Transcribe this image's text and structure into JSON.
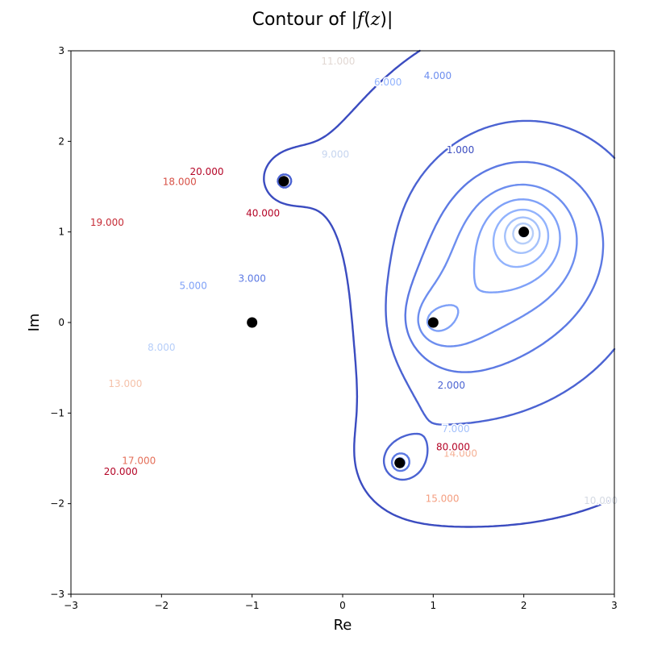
{
  "chart_data": {
    "type": "contour",
    "title": "Contour of |f(z)|",
    "xlabel": "Re",
    "ylabel": "Im",
    "xlim": [
      -3,
      3
    ],
    "ylim": [
      -3,
      3
    ],
    "xticks": [
      "−3",
      "−2",
      "−1",
      "0",
      "1",
      "2",
      "3"
    ],
    "yticks": [
      "−3",
      "−2",
      "−1",
      "0",
      "1",
      "2",
      "3"
    ],
    "grid": false,
    "colormap": "coolwarm",
    "levels": [
      1,
      2,
      3,
      4,
      5,
      6,
      7,
      8,
      9,
      10,
      11,
      12,
      13,
      14,
      15,
      16,
      17,
      18,
      19,
      20
    ],
    "points": [
      {
        "x": -1.0,
        "y": 0.0
      },
      {
        "x": -0.65,
        "y": 1.56
      },
      {
        "x": 1.0,
        "y": 0.0
      },
      {
        "x": 2.0,
        "y": 1.0
      },
      {
        "x": 0.63,
        "y": -1.55
      }
    ],
    "contour_labels": [
      {
        "text": "1.000",
        "x": 1.3,
        "y": 1.9,
        "level": 1
      },
      {
        "text": "2.000",
        "x": 1.2,
        "y": -0.7,
        "level": 2
      },
      {
        "text": "3.000",
        "x": -1.0,
        "y": 0.48,
        "level": 3
      },
      {
        "text": "4.000",
        "x": 1.05,
        "y": 2.72,
        "level": 4
      },
      {
        "text": "5.000",
        "x": -1.65,
        "y": 0.4,
        "level": 5
      },
      {
        "text": "6.000",
        "x": 0.5,
        "y": 2.65,
        "level": 6
      },
      {
        "text": "7.000",
        "x": 1.25,
        "y": -1.18,
        "level": 7
      },
      {
        "text": "8.000",
        "x": -2.0,
        "y": -0.28,
        "level": 8
      },
      {
        "text": "9.000",
        "x": -0.08,
        "y": 1.85,
        "level": 9
      },
      {
        "text": "10.000",
        "x": 2.85,
        "y": -1.97,
        "level": 10
      },
      {
        "text": "11.000",
        "x": -0.05,
        "y": 2.88,
        "level": 11
      },
      {
        "text": "13.000",
        "x": -2.4,
        "y": -0.68,
        "level": 13
      },
      {
        "text": "14.000",
        "x": 1.3,
        "y": -1.45,
        "level": 14
      },
      {
        "text": "15.000",
        "x": 1.1,
        "y": -1.95,
        "level": 15
      },
      {
        "text": "17.000",
        "x": -2.25,
        "y": -1.53,
        "level": 17
      },
      {
        "text": "18.000",
        "x": -1.8,
        "y": 1.55,
        "level": 18
      },
      {
        "text": "19.000",
        "x": -2.6,
        "y": 1.1,
        "level": 19
      },
      {
        "text": "20.000",
        "x": -1.5,
        "y": 1.66,
        "level": 20
      },
      {
        "text": "20.000",
        "x": -2.45,
        "y": -1.65,
        "level": 20
      },
      {
        "text": "40.000",
        "x": -0.88,
        "y": 1.2,
        "level": 40
      },
      {
        "text": "80.000",
        "x": 1.22,
        "y": -1.38,
        "level": 80
      }
    ]
  }
}
